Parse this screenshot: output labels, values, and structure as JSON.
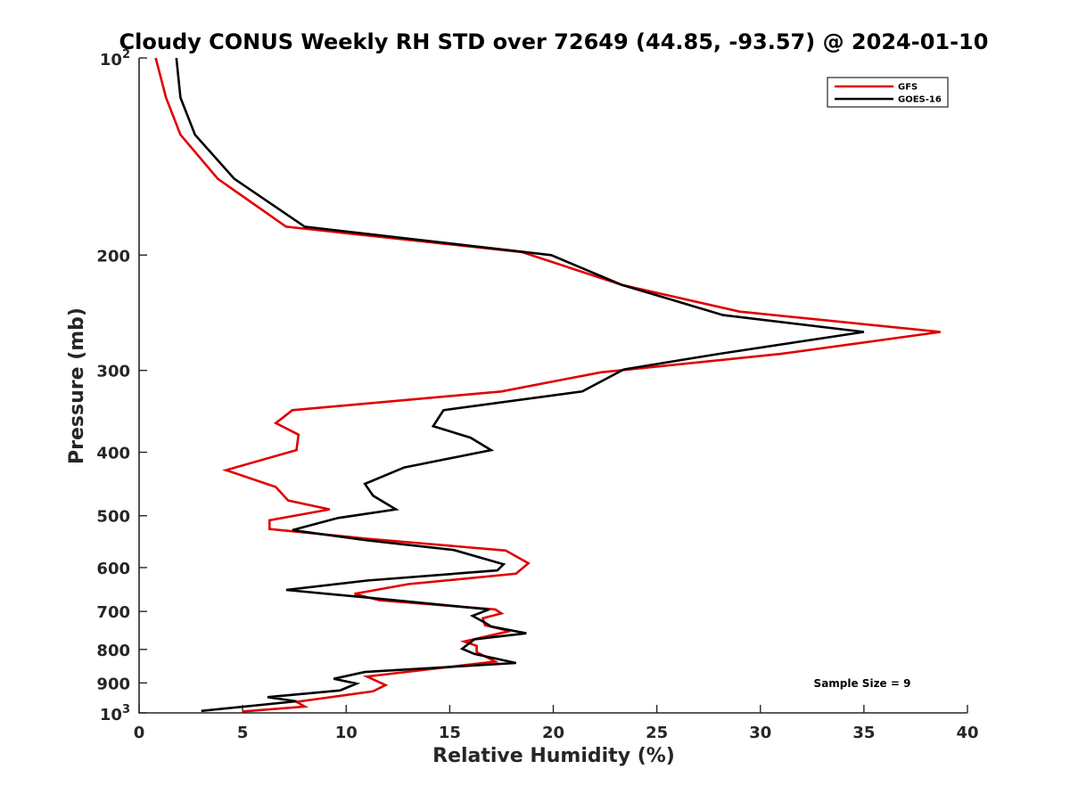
{
  "chart_data": {
    "type": "line",
    "title": "Cloudy CONUS Weekly RH STD over 72649 (44.85, -93.57) @ 2024-01-10",
    "xlabel": "Relative Humidity (%)",
    "ylabel": "Pressure (mb)",
    "xlim": [
      0,
      40
    ],
    "ylim": [
      100,
      1000
    ],
    "y_scale": "log",
    "y_reversed": true,
    "grid": false,
    "legend_position": "top-right",
    "x_ticks": [
      0,
      5,
      10,
      15,
      20,
      25,
      30,
      35,
      40
    ],
    "x_tick_labels": [
      "0",
      "5",
      "10",
      "15",
      "20",
      "25",
      "30",
      "35",
      "40"
    ],
    "y_ticks": [
      {
        "value": 100,
        "base": "10",
        "exp": "2"
      },
      {
        "value": 200,
        "label": "200"
      },
      {
        "value": 300,
        "label": "300"
      },
      {
        "value": 400,
        "label": "400"
      },
      {
        "value": 500,
        "label": "500"
      },
      {
        "value": 600,
        "label": "600"
      },
      {
        "value": 700,
        "label": "700"
      },
      {
        "value": 800,
        "label": "800"
      },
      {
        "value": 900,
        "label": "900"
      },
      {
        "value": 1000,
        "base": "10",
        "exp": "3"
      }
    ],
    "annotation": "Sample Size = 9",
    "series": [
      {
        "name": "GFS",
        "color": "#e00000",
        "points": [
          [
            0.8,
            100
          ],
          [
            1.3,
            115
          ],
          [
            2.0,
            131
          ],
          [
            3.8,
            153
          ],
          [
            7.1,
            181
          ],
          [
            18.5,
            198
          ],
          [
            23.3,
            222
          ],
          [
            29.0,
            244
          ],
          [
            38.7,
            262
          ],
          [
            31.0,
            283
          ],
          [
            22.3,
            302
          ],
          [
            17.5,
            323
          ],
          [
            7.4,
            345
          ],
          [
            6.6,
            361
          ],
          [
            7.7,
            376
          ],
          [
            7.6,
            397
          ],
          [
            4.2,
            426
          ],
          [
            6.6,
            452
          ],
          [
            7.2,
            474
          ],
          [
            9.2,
            489
          ],
          [
            6.3,
            508
          ],
          [
            6.3,
            524
          ],
          [
            11.0,
            542
          ],
          [
            17.7,
            565
          ],
          [
            18.8,
            591
          ],
          [
            18.2,
            613
          ],
          [
            13.0,
            636
          ],
          [
            10.4,
            658
          ],
          [
            11.6,
            673
          ],
          [
            17.2,
            695
          ],
          [
            17.5,
            705
          ],
          [
            16.6,
            717
          ],
          [
            16.7,
            735
          ],
          [
            17.9,
            750
          ],
          [
            15.7,
            778
          ],
          [
            16.3,
            790
          ],
          [
            16.3,
            808
          ],
          [
            17.2,
            835
          ],
          [
            11.0,
            880
          ],
          [
            11.9,
            907
          ],
          [
            11.3,
            927
          ],
          [
            7.6,
            962
          ],
          [
            8.0,
            978
          ],
          [
            5.0,
            995
          ]
        ]
      },
      {
        "name": "GOES-16",
        "color": "#000000",
        "points": [
          [
            1.8,
            100
          ],
          [
            2.0,
            115
          ],
          [
            2.7,
            131
          ],
          [
            4.6,
            153
          ],
          [
            8.0,
            181
          ],
          [
            19.9,
            200
          ],
          [
            23.3,
            222
          ],
          [
            28.2,
            247
          ],
          [
            35.0,
            262
          ],
          [
            28.0,
            283
          ],
          [
            23.4,
            299
          ],
          [
            21.4,
            323
          ],
          [
            14.7,
            345
          ],
          [
            14.2,
            365
          ],
          [
            16.0,
            380
          ],
          [
            17.0,
            397
          ],
          [
            12.8,
            422
          ],
          [
            10.9,
            447
          ],
          [
            11.3,
            466
          ],
          [
            12.4,
            489
          ],
          [
            9.6,
            504
          ],
          [
            7.4,
            526
          ],
          [
            11.0,
            545
          ],
          [
            15.2,
            564
          ],
          [
            17.6,
            593
          ],
          [
            17.3,
            606
          ],
          [
            11.0,
            628
          ],
          [
            7.1,
            649
          ],
          [
            11.3,
            668
          ],
          [
            16.9,
            695
          ],
          [
            16.1,
            711
          ],
          [
            16.7,
            728
          ],
          [
            17.0,
            738
          ],
          [
            18.7,
            756
          ],
          [
            16.2,
            772
          ],
          [
            15.6,
            798
          ],
          [
            16.2,
            813
          ],
          [
            18.2,
            839
          ],
          [
            10.9,
            866
          ],
          [
            9.4,
            887
          ],
          [
            10.5,
            902
          ],
          [
            9.7,
            924
          ],
          [
            6.2,
            946
          ],
          [
            7.6,
            960
          ],
          [
            3.0,
            993
          ]
        ]
      }
    ]
  }
}
